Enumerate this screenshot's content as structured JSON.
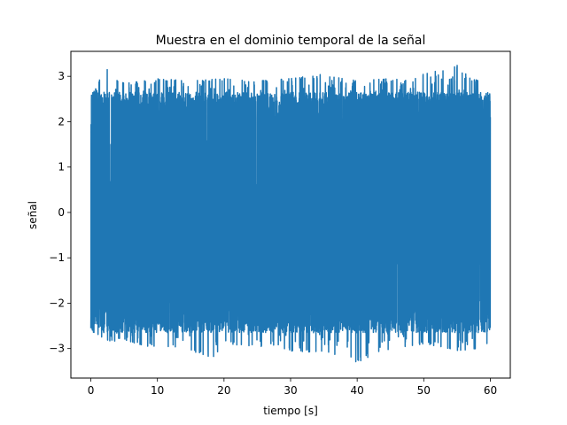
{
  "chart_data": {
    "type": "line",
    "title": "Muestra en el dominio temporal de la señal",
    "xlabel": "tiempo [s]",
    "ylabel": "señal",
    "xlim": [
      -3,
      63
    ],
    "ylim": [
      -3.65,
      3.55
    ],
    "xticks": [
      0,
      10,
      20,
      30,
      40,
      50,
      60
    ],
    "yticks": [
      -3,
      -2,
      -1,
      0,
      1,
      2,
      3
    ],
    "ytick_labels": [
      "−3",
      "−2",
      "−1",
      "0",
      "1",
      "2",
      "3"
    ],
    "grid": false,
    "color": "#1f77b4",
    "series": [
      {
        "x_start": 0,
        "x_end": 60,
        "envelope_high": [
          [
            0,
            2.6
          ],
          [
            1,
            2.8
          ],
          [
            2,
            3.2
          ],
          [
            3,
            3.1
          ],
          [
            4,
            2.9
          ],
          [
            5,
            2.85
          ],
          [
            8,
            2.9
          ],
          [
            10,
            2.95
          ],
          [
            15,
            2.9
          ],
          [
            20,
            2.95
          ],
          [
            25,
            2.9
          ],
          [
            30,
            2.95
          ],
          [
            35,
            3.05
          ],
          [
            40,
            2.9
          ],
          [
            45,
            2.95
          ],
          [
            48,
            2.9
          ],
          [
            50,
            3.05
          ],
          [
            55,
            3.25
          ],
          [
            57,
            2.95
          ],
          [
            60,
            2.85
          ]
        ],
        "envelope_low": [
          [
            0,
            -2.6
          ],
          [
            1,
            -2.7
          ],
          [
            3,
            -2.85
          ],
          [
            5,
            -2.8
          ],
          [
            7,
            -2.9
          ],
          [
            10,
            -3.0
          ],
          [
            14,
            -2.95
          ],
          [
            18,
            -3.25
          ],
          [
            20,
            -2.9
          ],
          [
            25,
            -2.95
          ],
          [
            29,
            -3.0
          ],
          [
            31,
            -3.1
          ],
          [
            35,
            -3.05
          ],
          [
            40,
            -3.3
          ],
          [
            45,
            -3.0
          ],
          [
            50,
            -2.9
          ],
          [
            55,
            -3.05
          ],
          [
            58,
            -3.0
          ],
          [
            60,
            -2.85
          ]
        ]
      }
    ]
  }
}
